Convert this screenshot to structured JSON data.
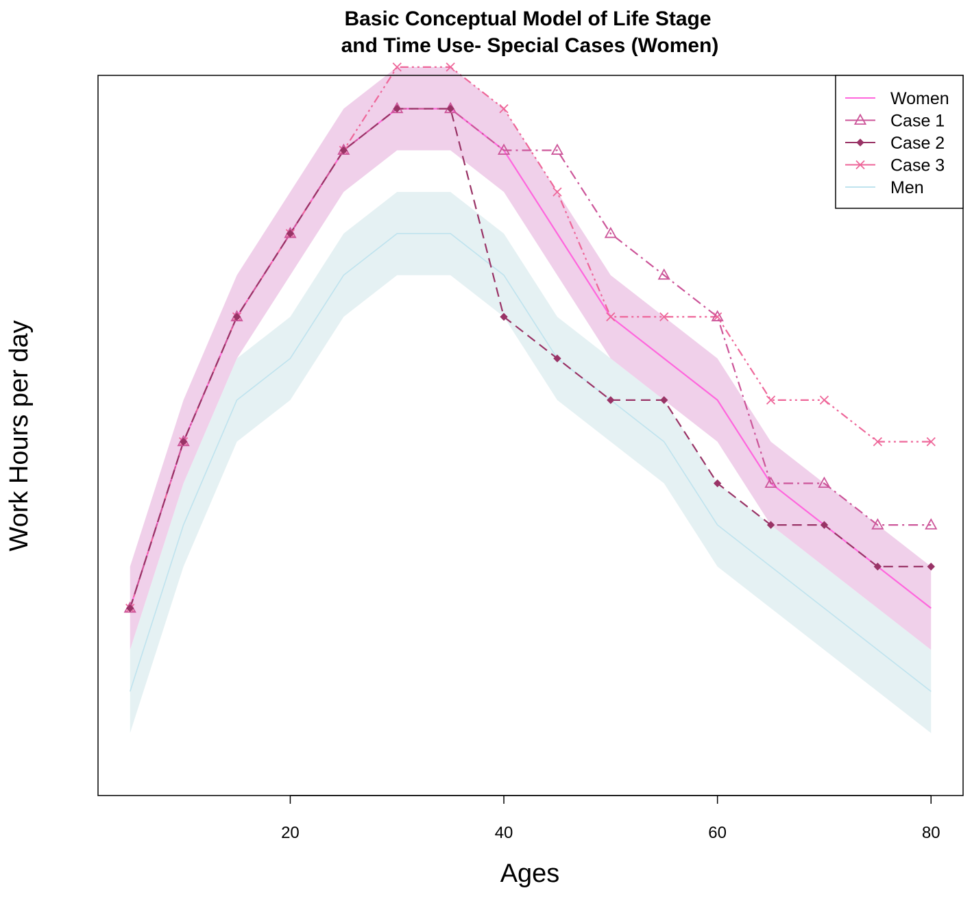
{
  "chart_data": {
    "type": "line",
    "title_lines": [
      "Basic Conceptual Model of Life Stage",
      "and Time Use- Special Cases (Women)"
    ],
    "xlabel": "Ages",
    "ylabel": "Work Hours per day",
    "xlim": [
      2,
      83
    ],
    "ylim": [
      -1.5,
      15.8
    ],
    "x_ticks": [
      20,
      40,
      60,
      80
    ],
    "x_tick_labels": [
      "20",
      "40",
      "60",
      "80"
    ],
    "legend_position": "top-right",
    "x": [
      5,
      10,
      15,
      20,
      25,
      30,
      35,
      40,
      45,
      50,
      55,
      60,
      65,
      70,
      75,
      80
    ],
    "series": [
      {
        "name": "Women",
        "color": "#ff66dd",
        "style": "solid",
        "marker": "none",
        "values": [
          3,
          7,
          10,
          12,
          14,
          15,
          15,
          14,
          12,
          10,
          9,
          8,
          6,
          5,
          4,
          3
        ],
        "band": {
          "color": "#f0d0ea",
          "half_width": 1
        }
      },
      {
        "name": "Case 1",
        "color": "#cc5599",
        "style": "dashdot",
        "marker": "triangle",
        "values": [
          3,
          7,
          10,
          12,
          14,
          15,
          15,
          14,
          14,
          12,
          11,
          10,
          6,
          6,
          5,
          5
        ]
      },
      {
        "name": "Case 2",
        "color": "#993366",
        "style": "dashed",
        "marker": "diamond",
        "values": [
          3,
          7,
          10,
          12,
          14,
          15,
          15,
          10,
          9,
          8,
          8,
          6,
          5,
          5,
          4,
          4
        ]
      },
      {
        "name": "Case 3",
        "color": "#ee6699",
        "style": "dashdotdot",
        "marker": "x",
        "values": [
          3,
          7,
          10,
          12,
          14,
          16,
          16,
          15,
          13,
          10,
          10,
          10,
          8,
          8,
          7,
          7
        ]
      },
      {
        "name": "Men",
        "color": "#bfe3ee",
        "style": "solid",
        "marker": "none",
        "values": [
          1,
          5,
          8,
          9,
          11,
          12,
          12,
          11,
          9,
          8,
          7,
          5,
          4,
          3,
          2,
          1
        ],
        "band": {
          "color": "#e5f1f3",
          "half_width": 1
        }
      }
    ]
  }
}
